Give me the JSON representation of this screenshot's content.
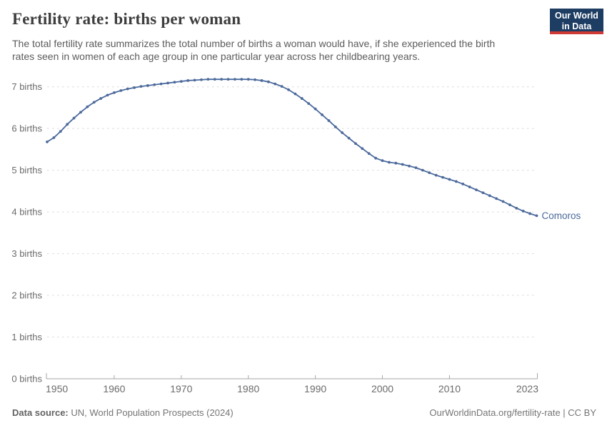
{
  "header": {
    "title": "Fertility rate: births per woman",
    "subtitle": "The total fertility rate summarizes the total number of births a woman would have, if she experienced the birth\nrates seen in women of each age group in one particular year across her childbearing years.",
    "logo": {
      "line1": "Our World",
      "line2": "in Data"
    }
  },
  "chart_data": {
    "type": "line",
    "title": "Fertility rate: births per woman",
    "xlabel": "",
    "ylabel": "",
    "xlim": [
      1950,
      2023
    ],
    "ylim": [
      0,
      7
    ],
    "grid": "horizontal-dashed",
    "legend": "end-of-line-label",
    "x": [
      1950,
      1951,
      1952,
      1953,
      1954,
      1955,
      1956,
      1957,
      1958,
      1959,
      1960,
      1961,
      1962,
      1963,
      1964,
      1965,
      1966,
      1967,
      1968,
      1969,
      1970,
      1971,
      1972,
      1973,
      1974,
      1975,
      1976,
      1977,
      1978,
      1979,
      1980,
      1981,
      1982,
      1983,
      1984,
      1985,
      1986,
      1987,
      1988,
      1989,
      1990,
      1991,
      1992,
      1993,
      1994,
      1995,
      1996,
      1997,
      1998,
      1999,
      2000,
      2001,
      2002,
      2003,
      2004,
      2005,
      2006,
      2007,
      2008,
      2009,
      2010,
      2011,
      2012,
      2013,
      2014,
      2015,
      2016,
      2017,
      2018,
      2019,
      2020,
      2021,
      2022,
      2023
    ],
    "series": [
      {
        "name": "Comoros",
        "color": "#4c6a9c",
        "values": [
          5.68,
          5.78,
          5.93,
          6.1,
          6.25,
          6.39,
          6.52,
          6.63,
          6.72,
          6.8,
          6.86,
          6.91,
          6.95,
          6.98,
          7.01,
          7.03,
          7.05,
          7.07,
          7.09,
          7.11,
          7.13,
          7.15,
          7.16,
          7.17,
          7.18,
          7.18,
          7.18,
          7.18,
          7.18,
          7.18,
          7.18,
          7.17,
          7.15,
          7.12,
          7.07,
          7.01,
          6.93,
          6.83,
          6.72,
          6.6,
          6.47,
          6.33,
          6.19,
          6.04,
          5.9,
          5.77,
          5.64,
          5.52,
          5.4,
          5.29,
          5.23,
          5.19,
          5.17,
          5.14,
          5.1,
          5.06,
          5.0,
          4.94,
          4.88,
          4.83,
          4.78,
          4.73,
          4.67,
          4.6,
          4.53,
          4.46,
          4.39,
          4.32,
          4.25,
          4.17,
          4.09,
          4.02,
          3.96,
          3.91
        ]
      }
    ],
    "yticks": [
      {
        "v": 0,
        "label": "0 births"
      },
      {
        "v": 1,
        "label": "1 births"
      },
      {
        "v": 2,
        "label": "2 births"
      },
      {
        "v": 3,
        "label": "3 births"
      },
      {
        "v": 4,
        "label": "4 births"
      },
      {
        "v": 5,
        "label": "5 births"
      },
      {
        "v": 6,
        "label": "6 births"
      },
      {
        "v": 7,
        "label": "7 births"
      }
    ],
    "xticks": [
      {
        "v": 1950,
        "label": "1950",
        "align": "start"
      },
      {
        "v": 1960,
        "label": "1960"
      },
      {
        "v": 1970,
        "label": "1970"
      },
      {
        "v": 1980,
        "label": "1980"
      },
      {
        "v": 1990,
        "label": "1990"
      },
      {
        "v": 2000,
        "label": "2000"
      },
      {
        "v": 2010,
        "label": "2010"
      },
      {
        "v": 2023,
        "label": "2023",
        "align": "end"
      }
    ]
  },
  "colors": {
    "line": "#4c6a9c",
    "grid": "#d9d9d9",
    "axis": "#a6a6a6",
    "tick_text": "#6b6b6b",
    "logo_navy": "#1d3d63",
    "logo_red": "#cf3a35"
  },
  "footer": {
    "source_label": "Data source:",
    "source_text": " UN, World Population Prospects (2024)",
    "credit": "OurWorldinData.org/fertility-rate | CC BY"
  }
}
